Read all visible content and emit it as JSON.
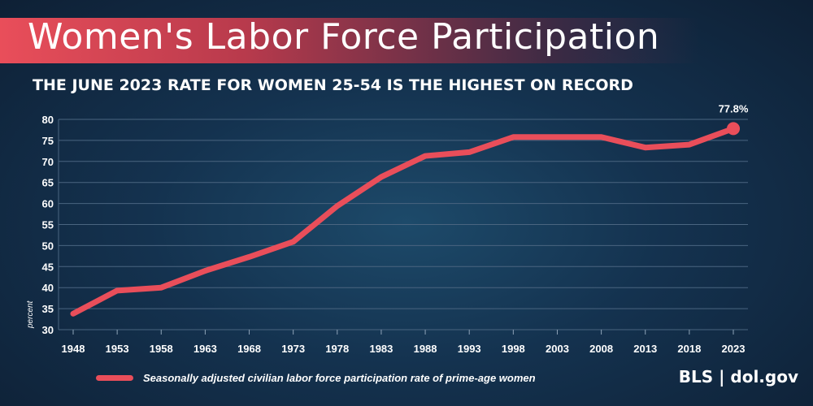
{
  "header": {
    "title": "Women's Labor Force Participation",
    "subtitle": "THE JUNE 2023 RATE FOR WOMEN 25-54 IS THE HIGHEST ON RECORD"
  },
  "footer": {
    "source": "BLS | dol.gov"
  },
  "colors": {
    "line": "#e94e5a",
    "grid": "#4a6580",
    "text": "#ffffff"
  },
  "chart_data": {
    "type": "line",
    "title": "Women's Labor Force Participation",
    "subtitle": "THE JUNE 2023 RATE FOR WOMEN 25-54 IS THE HIGHEST ON RECORD",
    "xlabel": "",
    "ylabel": "percent",
    "x": [
      1948,
      1953,
      1958,
      1963,
      1968,
      1973,
      1978,
      1983,
      1988,
      1993,
      1998,
      2003,
      2008,
      2013,
      2018,
      2023
    ],
    "ylim": [
      30,
      80
    ],
    "yticks": [
      30,
      35,
      40,
      45,
      50,
      55,
      60,
      65,
      70,
      75,
      80
    ],
    "grid": true,
    "legend_placement": "bottom-left",
    "series": [
      {
        "name": "Seasonally adjusted civilian labor force participation rate of prime-age women",
        "values": [
          33.8,
          39.3,
          40.0,
          44.0,
          47.3,
          50.9,
          59.4,
          66.3,
          71.3,
          72.2,
          75.8,
          75.8,
          75.8,
          73.3,
          74.0,
          77.8
        ]
      }
    ],
    "annotations": [
      {
        "x": 2023,
        "label": "77.8%"
      }
    ]
  }
}
